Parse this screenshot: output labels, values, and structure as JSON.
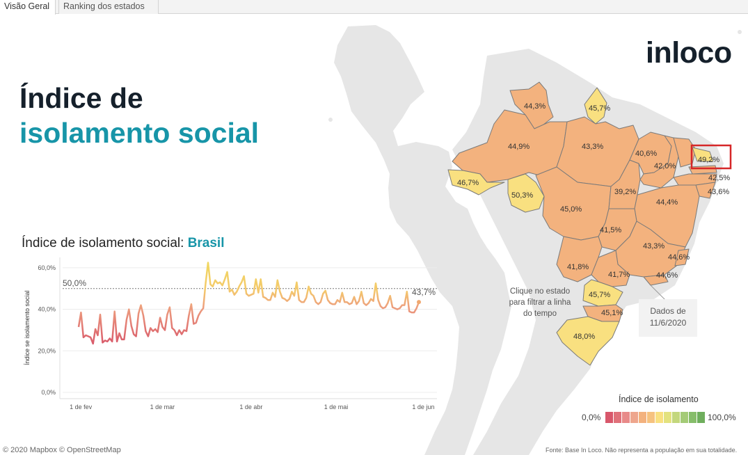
{
  "tabs": [
    {
      "label": "Visão Geral",
      "active": true
    },
    {
      "label": "Ranking dos estados",
      "active": false
    }
  ],
  "header": {
    "title_line1": "Índice de",
    "title_line2": "isolamento social",
    "logo": "inloco"
  },
  "chart": {
    "title_prefix": "Índice de isolamento social: ",
    "title_highlight": "Brasil"
  },
  "map": {
    "selected_state_value": "49,2%",
    "hint": "Clique no estado para filtrar a linha do tempo",
    "date_note": "Dados de 11/6/2020",
    "state_labels": [
      "44,3%",
      "45,7%",
      "44,9%",
      "43,3%",
      "40,6%",
      "42,0%",
      "49,2%",
      "42,5%",
      "43,6%",
      "46,7%",
      "50,3%",
      "45,0%",
      "39,2%",
      "44,4%",
      "41,5%",
      "43,3%",
      "44,6%",
      "41,8%",
      "41,7%",
      "44,6%",
      "45,7%",
      "45,1%",
      "48,0%"
    ],
    "colors": {
      "orange": "#f3b27e",
      "yellow": "#f9e080",
      "border": "#7a7a7a",
      "land": "#e6e6e6",
      "highlight": "#d62728"
    }
  },
  "legend": {
    "title": "Índice de isolamento",
    "min": "0,0%",
    "max": "100,0%",
    "colors": [
      "#d8576b",
      "#e0717a",
      "#e88a89",
      "#eea68d",
      "#f3b27e",
      "#f6c27f",
      "#f9e080",
      "#e3e27e",
      "#c3d77c",
      "#a4cb77",
      "#86bd6a",
      "#6fae5d"
    ]
  },
  "footer": {
    "left": "© 2020 Mapbox © OpenStreetMap",
    "right": "Fonte: Base In Loco. Não representa a população em sua totalidade."
  },
  "chart_data": {
    "type": "line",
    "title": "Índice de isolamento social: Brasil",
    "ylabel": "Índice se isolamento social",
    "ylim": [
      0,
      65
    ],
    "yticks": [
      "0,0%",
      "20,0%",
      "40,0%",
      "60,0%"
    ],
    "xticks": [
      "1 de fev",
      "1 de mar",
      "1 de abr",
      "1 de mai",
      "1 de jun"
    ],
    "reference_line": {
      "value": 50,
      "label": "50,0%"
    },
    "last_label": "43,7%",
    "series": [
      {
        "values": [
          31.5,
          38.5,
          26.5,
          27.5,
          27,
          26.5,
          23.5,
          30.5,
          27.5,
          37.5,
          24,
          25,
          24.5,
          26,
          24.5,
          39,
          24.5,
          28.5,
          25.5,
          25.5,
          35,
          40,
          32,
          28,
          27,
          38,
          42,
          37,
          29.5,
          27,
          31,
          29.5,
          30.5,
          29,
          36,
          31.5,
          30,
          37.5,
          41,
          31,
          30,
          27.5,
          30,
          28,
          30,
          29.5,
          37,
          42.5,
          33,
          33.5,
          37,
          39,
          40.5,
          52.5,
          62.5,
          52,
          51,
          54,
          52.5,
          53,
          51.5,
          54.5,
          58,
          48.5,
          49.5,
          47,
          48.5,
          51,
          53,
          56,
          47.5,
          46.5,
          47,
          47.5,
          54.5,
          48,
          54.5,
          46,
          45.5,
          44.5,
          44.5,
          48,
          46,
          54,
          48.5,
          45.5,
          45,
          44,
          45,
          48.5,
          46.5,
          53,
          44.5,
          43.5,
          43.5,
          45.5,
          51,
          47.5,
          46.5,
          43.5,
          42.5,
          43.5,
          47.5,
          49,
          44.5,
          43,
          42.5,
          42.5,
          44.5,
          43.5,
          48,
          43.5,
          43.5,
          42.5,
          43,
          46,
          42.5,
          44,
          48.5,
          43,
          42,
          43,
          45,
          44,
          52.5,
          44.5,
          41.5,
          40.5,
          41,
          43,
          46.5,
          41,
          40.5,
          40,
          40.5,
          42,
          42,
          48.5,
          39,
          38.5,
          38.5,
          40.5,
          43.5
        ]
      }
    ]
  }
}
